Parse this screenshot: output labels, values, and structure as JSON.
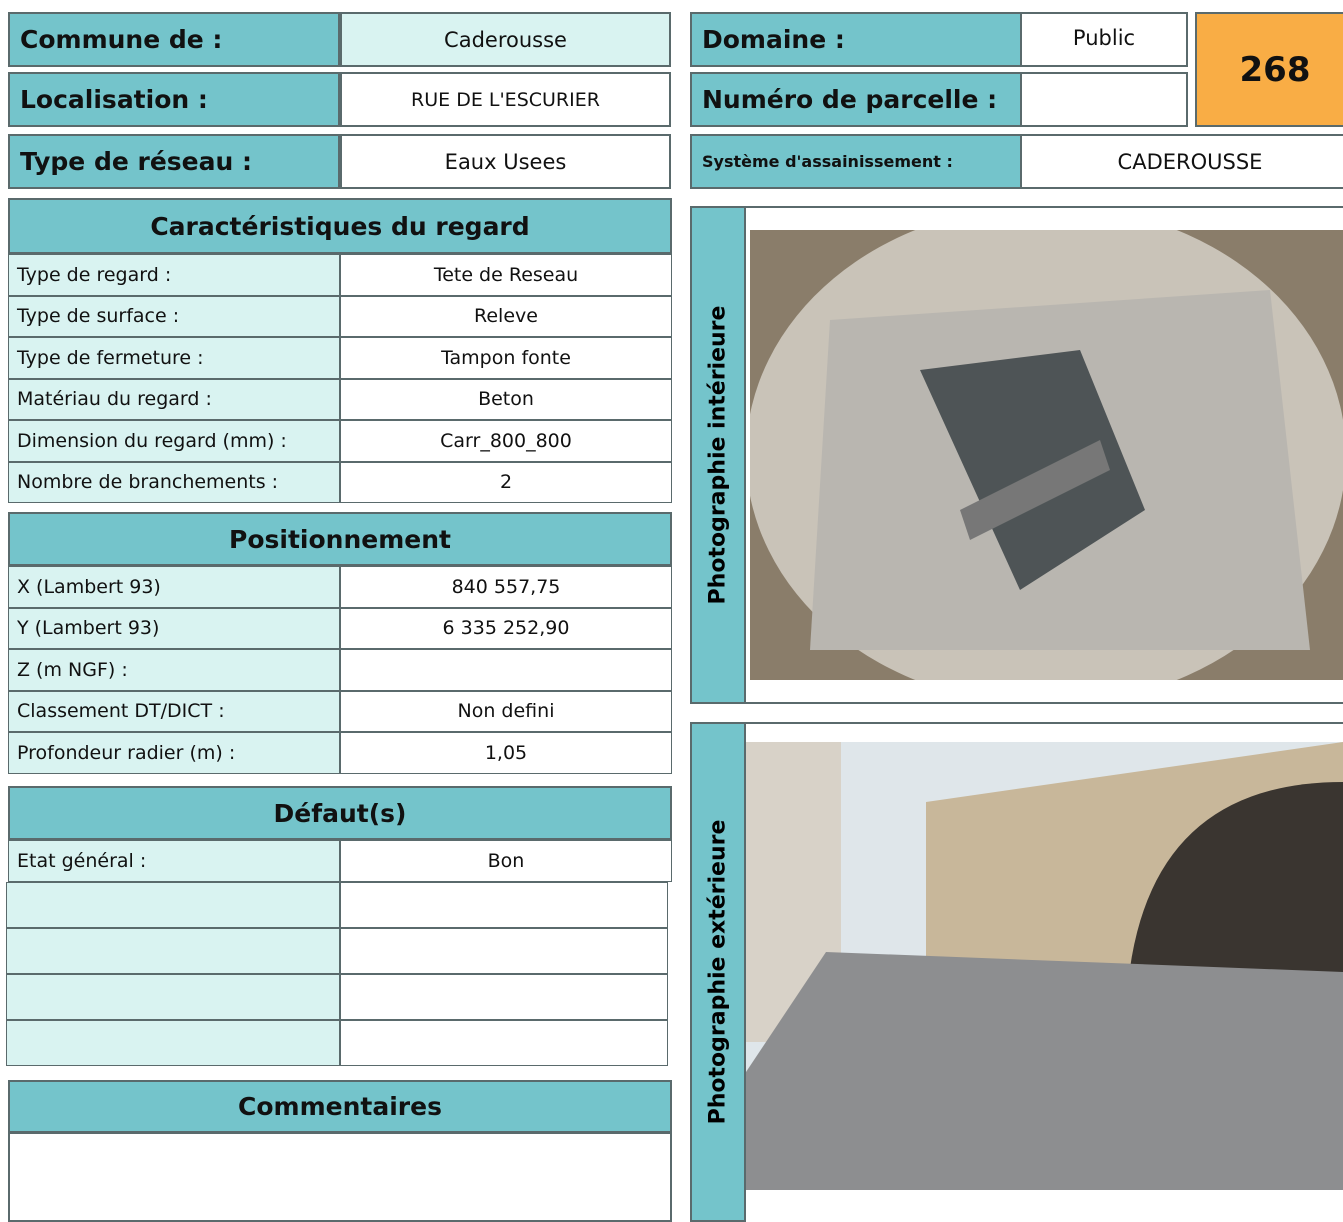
{
  "header": {
    "commune": {
      "label": "Commune de :",
      "value": "Caderousse"
    },
    "localisation": {
      "label": "Localisation :",
      "value": "RUE DE L'ESCURIER"
    },
    "type_reseau": {
      "label": "Type de réseau :",
      "value": "Eaux Usees"
    },
    "domaine": {
      "label": "Domaine :",
      "value": "Public"
    },
    "parcelle": {
      "label": "Numéro de parcelle :"
    },
    "systeme": {
      "label": "Système d'assainissement :",
      "value": "CADEROUSSE"
    },
    "number": "268"
  },
  "caracteristiques": {
    "title": "Caractéristiques du regard",
    "rows": [
      [
        "Type de regard :",
        "Tete de Reseau"
      ],
      [
        "Type de surface :",
        "Releve"
      ],
      [
        "Type de fermeture :",
        "Tampon fonte"
      ],
      [
        "Matériau du regard :",
        "Beton"
      ],
      [
        "Dimension du regard (mm) :",
        "Carr_800_800"
      ],
      [
        "Nombre de branchements :",
        "2"
      ]
    ]
  },
  "positionnement": {
    "title": "Positionnement",
    "rows": [
      [
        "X (Lambert 93)",
        "840 557,75"
      ],
      [
        "Y (Lambert 93)",
        "6 335 252,90"
      ],
      [
        "Z (m NGF) :"
      ],
      [
        "Classement DT/DICT :",
        "Non defini"
      ],
      [
        "Profondeur radier (m) :",
        "1,05"
      ]
    ]
  },
  "defauts": {
    "title": "Défaut(s)",
    "rows": [
      [
        "Etat général :",
        "Bon"
      ]
    ]
  },
  "commentaires": {
    "title": "Commentaires"
  },
  "photos": {
    "interior": "Photographie intérieure",
    "exterior": "Photographie extérieure"
  }
}
